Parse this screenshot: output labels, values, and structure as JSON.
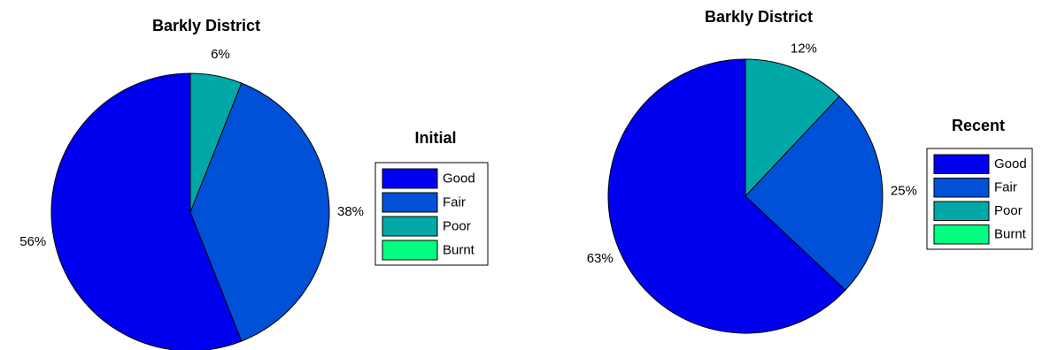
{
  "chart_data": [
    {
      "type": "pie",
      "title": "Barkly District",
      "legend_title": "Initial",
      "categories": [
        "Good",
        "Fair",
        "Poor",
        "Burnt"
      ],
      "values": [
        56,
        38,
        6,
        0
      ],
      "value_labels": [
        "56%",
        "38%",
        "6%",
        null
      ],
      "colors": [
        "#0000f0",
        "#0050d8",
        "#00a8a8",
        "#00ff80"
      ]
    },
    {
      "type": "pie",
      "title": "Barkly District",
      "legend_title": "Recent",
      "categories": [
        "Good",
        "Fair",
        "Poor",
        "Burnt"
      ],
      "values": [
        63,
        25,
        12,
        0
      ],
      "value_labels": [
        "63%",
        "25%",
        "12%",
        null
      ],
      "colors": [
        "#0000f0",
        "#0050d8",
        "#00a8a8",
        "#00ff80"
      ]
    }
  ]
}
